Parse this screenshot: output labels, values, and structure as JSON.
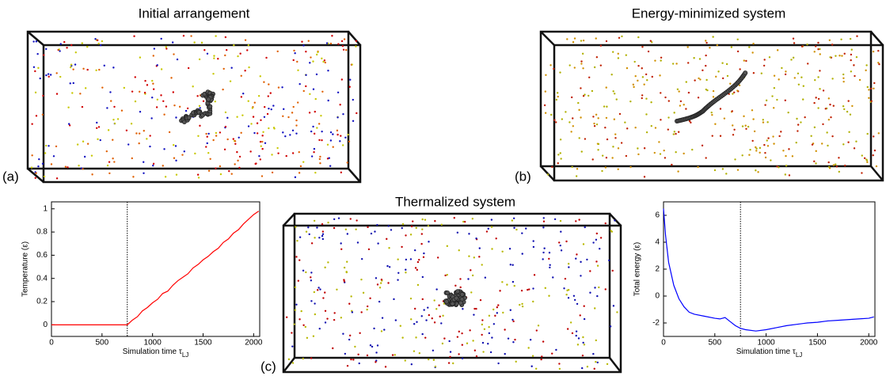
{
  "panels": [
    {
      "title": "Initial arrangement",
      "label": "(a)"
    },
    {
      "title": "Energy-minimized system",
      "label": "(b)"
    },
    {
      "title": "Thermalized system",
      "label": "(c)"
    }
  ],
  "chart_data": [
    {
      "type": "line",
      "ylabel": "Temperature (ε)",
      "xlabel": "Simulation time τ",
      "xlabel_sub": "LJ",
      "x": [
        0,
        250,
        500,
        750,
        800,
        850,
        900,
        950,
        1000,
        1050,
        1100,
        1150,
        1200,
        1250,
        1300,
        1350,
        1400,
        1450,
        1500,
        1550,
        1600,
        1650,
        1700,
        1750,
        1800,
        1850,
        1900,
        1950,
        2000,
        2050
      ],
      "series": [
        {
          "color": "#ff0000",
          "values": [
            0,
            0,
            0,
            0,
            0.04,
            0.07,
            0.12,
            0.15,
            0.19,
            0.22,
            0.27,
            0.29,
            0.34,
            0.38,
            0.41,
            0.44,
            0.49,
            0.52,
            0.56,
            0.59,
            0.63,
            0.66,
            0.71,
            0.74,
            0.79,
            0.82,
            0.87,
            0.91,
            0.95,
            0.98
          ]
        }
      ],
      "xlim": [
        0,
        2060
      ],
      "ylim": [
        -0.1,
        1.06
      ],
      "xticks": [
        0,
        500,
        1000,
        1500,
        2000
      ],
      "yticks": [
        0,
        0.2,
        0.4,
        0.6,
        0.8,
        1
      ],
      "vline": 750
    },
    {
      "type": "line",
      "ylabel": "Total energy (ε)",
      "xlabel": "Simulation time τ",
      "xlabel_sub": "LJ",
      "x": [
        0,
        20,
        50,
        100,
        150,
        200,
        250,
        300,
        400,
        500,
        550,
        600,
        650,
        700,
        750,
        800,
        900,
        1000,
        1100,
        1200,
        1300,
        1400,
        1500,
        1600,
        1700,
        1800,
        1900,
        2000,
        2050
      ],
      "series": [
        {
          "color": "#0000ff",
          "values": [
            6.5,
            4.5,
            2.5,
            0.8,
            -0.2,
            -0.8,
            -1.2,
            -1.35,
            -1.5,
            -1.65,
            -1.7,
            -1.6,
            -1.9,
            -2.2,
            -2.4,
            -2.5,
            -2.6,
            -2.5,
            -2.35,
            -2.2,
            -2.1,
            -2.0,
            -1.95,
            -1.85,
            -1.8,
            -1.75,
            -1.7,
            -1.65,
            -1.55
          ]
        }
      ],
      "xlim": [
        0,
        2060
      ],
      "ylim": [
        -3,
        7
      ],
      "xticks": [
        0,
        500,
        1000,
        1500,
        2000
      ],
      "yticks": [
        -2,
        0,
        2,
        4,
        6
      ],
      "vline": 750
    }
  ]
}
